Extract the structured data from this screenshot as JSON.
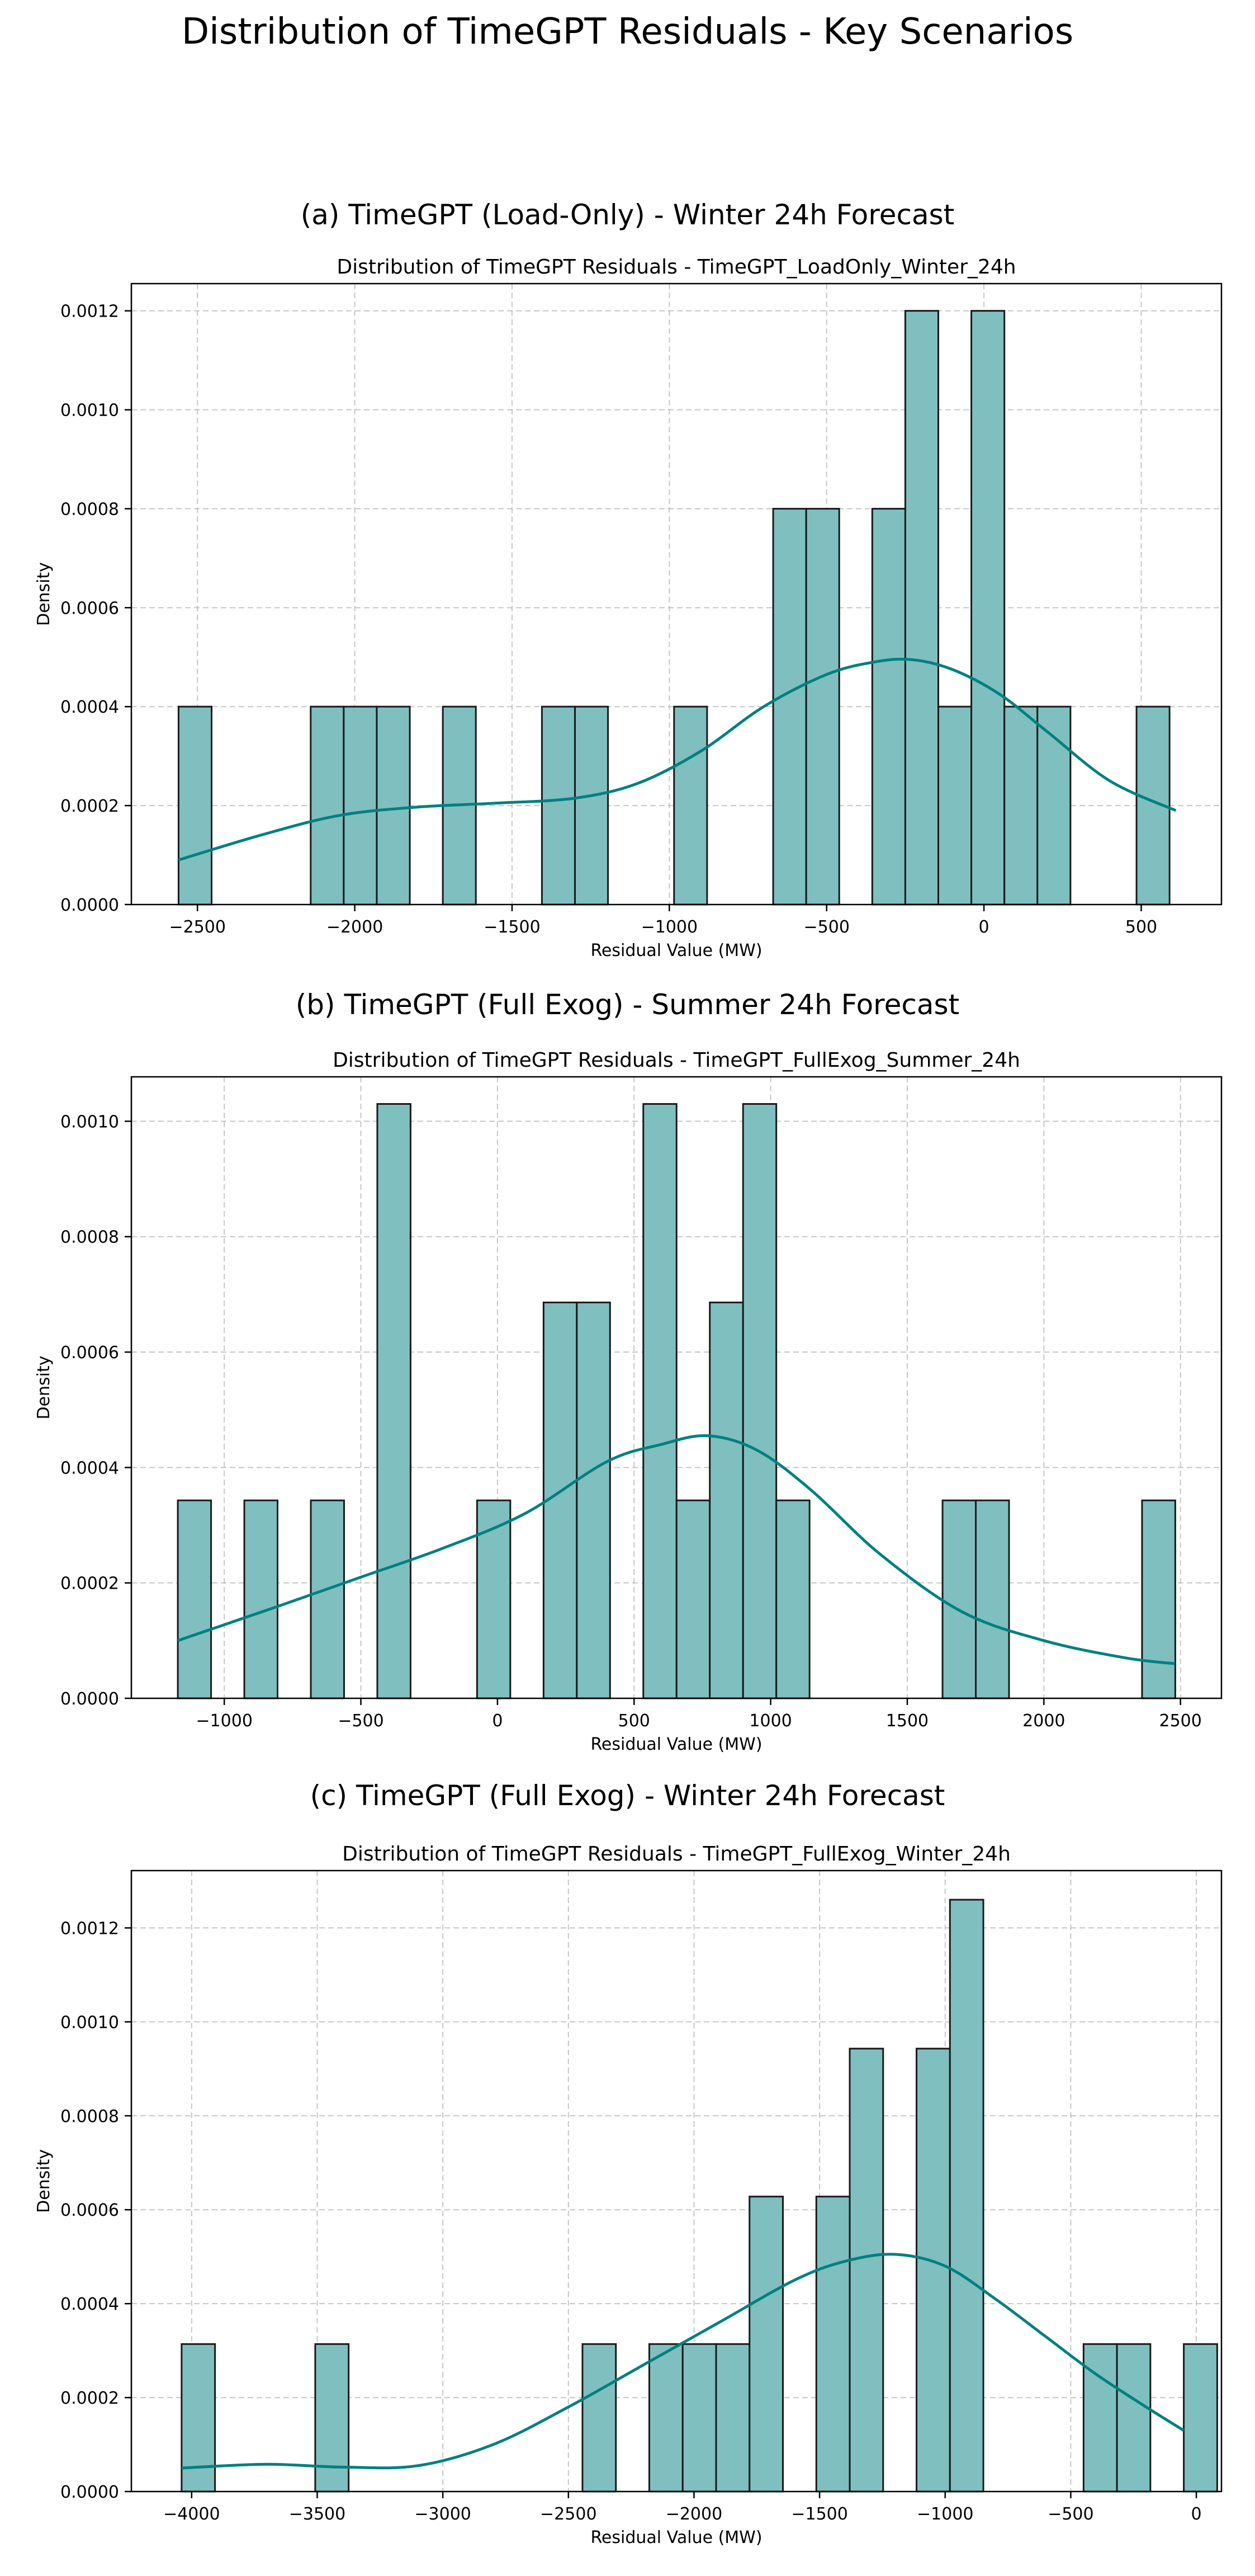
{
  "figure": {
    "title": "Distribution of TimeGPT Residuals - Key Scenarios"
  },
  "chart_data": [
    {
      "panel_title": "(a) TimeGPT (Load-Only) - Winter 24h Forecast",
      "type": "bar",
      "title": "Distribution of TimeGPT Residuals - TimeGPT_LoadOnly_Winter_24h",
      "xlabel": "Residual Value (MW)",
      "ylabel": "Density",
      "xlim": [
        -2710,
        755
      ],
      "ylim": [
        0,
        0.001255
      ],
      "xticks": [
        -2500,
        -2000,
        -1500,
        -1000,
        -500,
        0,
        500
      ],
      "xtick_labels": [
        "−2500",
        "−2000",
        "−1500",
        "−1000",
        "−500",
        "0",
        "500"
      ],
      "yticks": [
        0,
        0.0002,
        0.0004,
        0.0006,
        0.0008,
        0.001,
        0.0012
      ],
      "ytick_labels": [
        "0.0000",
        "0.0002",
        "0.0004",
        "0.0006",
        "0.0008",
        "0.0010",
        "0.0012"
      ],
      "grid": true,
      "bar_color": "#7fbfbf",
      "kde_color": "#008080",
      "bins": {
        "start": -2560,
        "width": 105,
        "values": [
          0.0004,
          0,
          0,
          0,
          0.0004,
          0.0004,
          0.0004,
          0,
          0.0004,
          0,
          0,
          0.0004,
          0.0004,
          0,
          0,
          0.0004,
          0,
          0,
          0.0008,
          0.0008,
          0,
          0.0008,
          0.0012,
          0.0004,
          0.0012,
          0.0004,
          0.0004,
          0,
          0,
          0.0004
        ]
      },
      "kde": {
        "x": [
          -2560,
          -2300,
          -2050,
          -1800,
          -1550,
          -1300,
          -1100,
          -900,
          -700,
          -500,
          -350,
          -230,
          -100,
          50,
          200,
          400,
          610
        ],
        "y": [
          9e-05,
          0.00014,
          0.00018,
          0.000197,
          0.000205,
          0.000215,
          0.000245,
          0.00031,
          0.0004,
          0.000465,
          0.00049,
          0.000495,
          0.000475,
          0.000425,
          0.00035,
          0.00025,
          0.00019
        ]
      }
    },
    {
      "panel_title": "(b) TimeGPT (Full Exog) - Summer 24h Forecast",
      "type": "bar",
      "title": "Distribution of TimeGPT Residuals - TimeGPT_FullExog_Summer_24h",
      "xlabel": "Residual Value (MW)",
      "ylabel": "Density",
      "xlim": [
        -1340,
        2650
      ],
      "ylim": [
        0,
        0.001077
      ],
      "xticks": [
        -1000,
        -500,
        0,
        500,
        1000,
        1500,
        2000,
        2500
      ],
      "xtick_labels": [
        "−1000",
        "−500",
        "0",
        "500",
        "1000",
        "1500",
        "2000",
        "2500"
      ],
      "yticks": [
        0,
        0.0002,
        0.0004,
        0.0006,
        0.0008,
        0.001
      ],
      "ytick_labels": [
        "0.0000",
        "0.0002",
        "0.0004",
        "0.0006",
        "0.0008",
        "0.0010"
      ],
      "grid": true,
      "bar_color": "#7fbfbf",
      "kde_color": "#008080",
      "bins": {
        "start": -1170,
        "width": 121.7,
        "values": [
          0.000343,
          0,
          0.000343,
          0,
          0.000343,
          0,
          0.00103,
          0,
          0,
          0.000343,
          0,
          0.000686,
          0.000686,
          0,
          0.00103,
          0.000343,
          0.000686,
          0.00103,
          0.000343,
          0,
          0,
          0,
          0,
          0.000343,
          0.000343,
          0,
          0,
          0,
          0,
          0.000343
        ]
      },
      "kde": {
        "x": [
          -1170,
          -800,
          -500,
          -200,
          100,
          400,
          600,
          770,
          950,
          1150,
          1400,
          1700,
          2000,
          2300,
          2480
        ],
        "y": [
          0.0001,
          0.00016,
          0.00021,
          0.00026,
          0.00032,
          0.00041,
          0.00044,
          0.000455,
          0.00043,
          0.00036,
          0.00025,
          0.00015,
          0.0001,
          7e-05,
          6e-05
        ]
      }
    },
    {
      "panel_title": "(c) TimeGPT (Full Exog) - Winter 24h Forecast",
      "type": "bar",
      "title": "Distribution of TimeGPT Residuals - TimeGPT_FullExog_Winter_24h",
      "xlabel": "Residual Value (MW)",
      "ylabel": "Density",
      "xlim": [
        -4240,
        100
      ],
      "ylim": [
        0,
        0.001322
      ],
      "xticks": [
        -4000,
        -3500,
        -3000,
        -2500,
        -2000,
        -1500,
        -1000,
        -500,
        0
      ],
      "xtick_labels": [
        "−4000",
        "−3500",
        "−3000",
        "−2500",
        "−2000",
        "−1500",
        "−1000",
        "−500",
        "0"
      ],
      "yticks": [
        0,
        0.0002,
        0.0004,
        0.0006,
        0.0008,
        0.001,
        0.0012
      ],
      "ytick_labels": [
        "0.0000",
        "0.0002",
        "0.0004",
        "0.0006",
        "0.0008",
        "0.0010",
        "0.0012"
      ],
      "grid": true,
      "bar_color": "#7fbfbf",
      "kde_color": "#008080",
      "bins": {
        "start": -4040,
        "width": 133,
        "values": [
          0.000314,
          0,
          0,
          0,
          0.000314,
          0,
          0,
          0,
          0,
          0,
          0,
          0,
          0.000314,
          0,
          0.000314,
          0.000314,
          0.000314,
          0.000628,
          0,
          0.000628,
          0.000943,
          0,
          0.000943,
          0.00126,
          0,
          0,
          0,
          0.000314,
          0.000314,
          0,
          0.000314
        ]
      },
      "kde": {
        "x": [
          -4040,
          -3700,
          -3400,
          -3100,
          -2800,
          -2500,
          -2200,
          -1900,
          -1600,
          -1400,
          -1200,
          -1000,
          -800,
          -600,
          -400,
          -200,
          -50
        ],
        "y": [
          5e-05,
          5.8e-05,
          5.2e-05,
          5.5e-05,
          0.0001,
          0.00018,
          0.00027,
          0.00036,
          0.00045,
          0.00049,
          0.000505,
          0.00048,
          0.00041,
          0.00033,
          0.00025,
          0.00018,
          0.00013
        ]
      }
    }
  ]
}
